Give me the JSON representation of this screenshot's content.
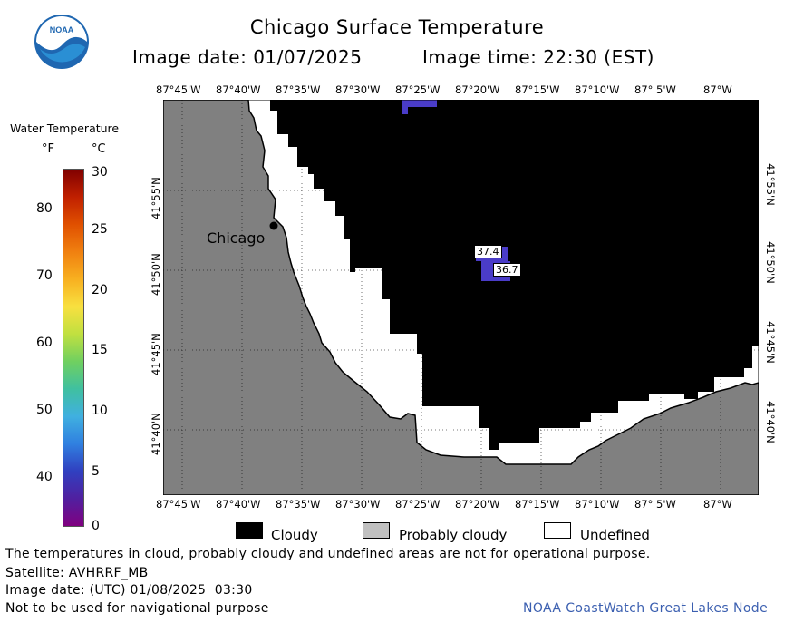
{
  "title": "Chicago Surface Temperature",
  "image_date_label": "Image date: 01/07/2025",
  "image_time_label": "Image time: 22:30 (EST)",
  "logo_text": "NOAA",
  "colorbar": {
    "title": "Water Temperature",
    "unit_f": "°F",
    "unit_c": "°C",
    "f_labels": [
      "80",
      "70",
      "60",
      "50",
      "40"
    ],
    "c_labels": [
      "30",
      "25",
      "20",
      "15",
      "10",
      "5",
      "0"
    ],
    "colors": [
      "#800000",
      "#c02000",
      "#e05000",
      "#f08010",
      "#f8b020",
      "#f8e040",
      "#c0e040",
      "#70d060",
      "#40c0a0",
      "#40b0e0",
      "#3080e0",
      "#3040c0",
      "#5020a0",
      "#800080"
    ]
  },
  "map": {
    "lon_labels_top": [
      "87°45'W",
      "87°40'W",
      "87°35'W",
      "87°30'W",
      "87°25'W",
      "87°20'W",
      "87°15'W",
      "87°10'W",
      "87° 5'W",
      "87°W"
    ],
    "lon_labels_bottom": [
      "87°45'W",
      "87°40'W",
      "87°35'W",
      "87°30'W",
      "87°25'W",
      "87°20'W",
      "87°15'W",
      "87°10'W",
      "87° 5'W",
      "87°W"
    ],
    "lat_labels": [
      "41°55'N",
      "41°50'N",
      "41°45'N",
      "41°40'N"
    ],
    "city_label": "Chicago",
    "temperature_labels": [
      "37.4",
      "36.7"
    ],
    "colors": {
      "land": "#808080",
      "cloudy": "#000000",
      "undefined": "#ffffff",
      "water_temp": "#4a3cc8"
    }
  },
  "legend": {
    "cloudy": "Cloudy",
    "probably_cloudy": "Probably cloudy",
    "undefined": "Undefined",
    "colors": {
      "cloudy": "#000000",
      "probably_cloudy": "#c0c0c0",
      "undefined": "#ffffff"
    }
  },
  "footer": {
    "disclaimer": "The temperatures in cloud, probably cloudy and undefined areas are not for operational purpose.",
    "satellite": "Satellite: AVHRRF_MB",
    "utc_date": "Image date: (UTC) 01/08/2025  03:30",
    "nav_warning": "Not to be used for navigational purpose",
    "credit": "NOAA CoastWatch Great Lakes Node"
  }
}
